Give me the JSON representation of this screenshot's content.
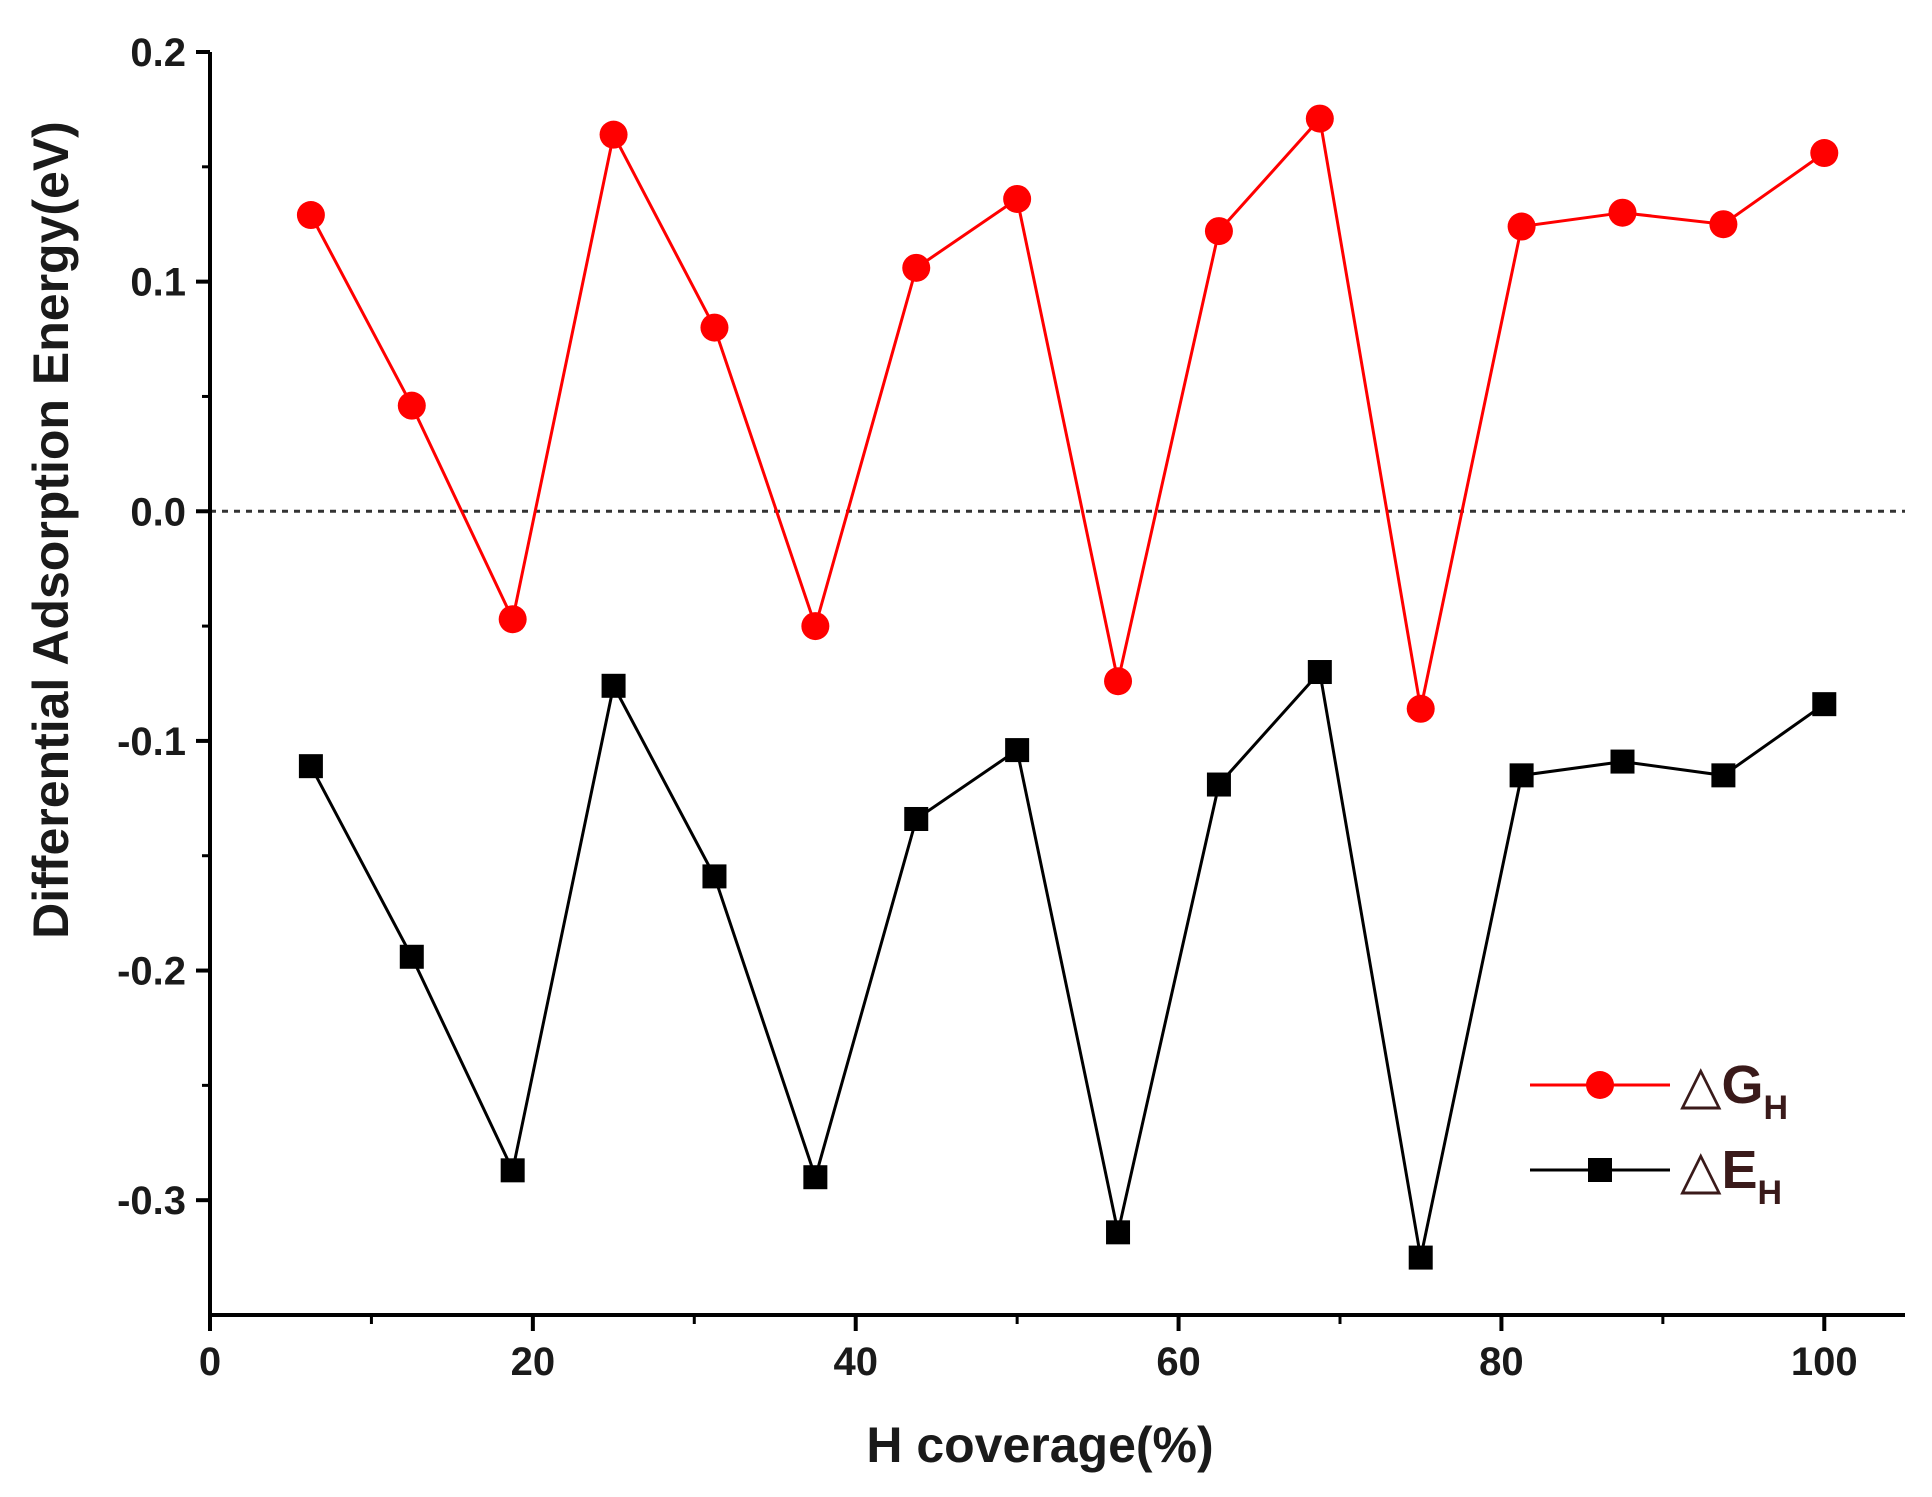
{
  "chart_data": {
    "type": "line",
    "title": "",
    "xlabel": "H coverage(%)",
    "ylabel": "Differential Adsorption Energy(eV)",
    "xlim": [
      0,
      105
    ],
    "ylim": [
      -0.35,
      0.2
    ],
    "xticks": [
      0,
      20,
      40,
      60,
      80,
      100
    ],
    "xtick_labels": [
      "0",
      "20",
      "40",
      "60",
      "80",
      "100"
    ],
    "yticks": [
      -0.3,
      -0.2,
      -0.1,
      0.0,
      0.1,
      0.2
    ],
    "ytick_labels": [
      "-0.3",
      "-0.2",
      "-0.1",
      "0.0",
      "0.1",
      "0.2"
    ],
    "reference_line": {
      "y": 0.0,
      "style": "dotted"
    },
    "grid": false,
    "legend_position": "lower-right",
    "x": [
      6.25,
      12.5,
      18.75,
      25,
      31.25,
      37.5,
      43.75,
      50,
      56.25,
      62.5,
      68.75,
      75,
      81.25,
      87.5,
      93.75,
      100
    ],
    "series": [
      {
        "name": "△G",
        "name_sub": "H",
        "color": "#ff0000",
        "marker": "circle",
        "values": [
          0.129,
          0.046,
          -0.047,
          0.164,
          0.08,
          -0.05,
          0.106,
          0.136,
          -0.074,
          0.122,
          0.171,
          -0.086,
          0.124,
          0.13,
          0.125,
          0.156
        ]
      },
      {
        "name": "△E",
        "name_sub": "H",
        "color": "#000000",
        "marker": "square",
        "values": [
          -0.111,
          -0.194,
          -0.287,
          -0.076,
          -0.159,
          -0.29,
          -0.134,
          -0.104,
          -0.314,
          -0.119,
          -0.07,
          -0.325,
          -0.115,
          -0.109,
          -0.115,
          -0.084
        ]
      }
    ]
  }
}
